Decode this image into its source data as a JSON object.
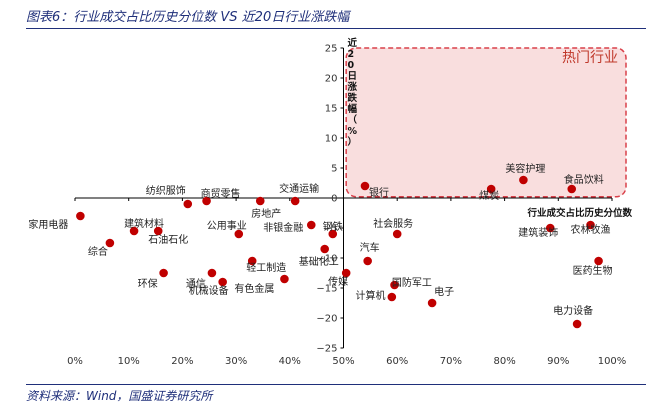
{
  "figure": {
    "title": "图表6：行业成交占比历史分位数 VS 近20日行业涨跌幅",
    "source": "资料来源：Wind，国盛证券研究所"
  },
  "chart_data": {
    "type": "scatter",
    "title": "图表6：行业成交占比历史分位数 VS 近20日行业涨跌幅",
    "xlabel": "行业成交占比历史分位数",
    "ylabel": "近20日涨跌幅（%）",
    "xlim": [
      0,
      1
    ],
    "ylim": [
      -25,
      25
    ],
    "xticks": [
      0,
      0.1,
      0.2,
      0.3,
      0.4,
      0.5,
      0.6,
      0.7,
      0.8,
      0.9,
      1.0
    ],
    "xtick_labels": [
      "0%",
      "10%",
      "20%",
      "30%",
      "40%",
      "50%",
      "60%",
      "70%",
      "80%",
      "90%",
      "100%"
    ],
    "yticks": [
      25,
      20,
      15,
      10,
      5,
      0,
      -5,
      -10,
      -15,
      -20,
      -25
    ],
    "ytick_labels": [
      "25",
      "20",
      "15",
      "10",
      "5",
      "0",
      "−5",
      "−10",
      "−15",
      "−20",
      "−25"
    ],
    "grid": false,
    "color": "#c00000",
    "highlight": {
      "label": "热门行业",
      "x_range": [
        0.505,
        1.0
      ],
      "y_range": [
        0.2,
        25
      ],
      "fill": "#f9dede",
      "stroke": "#d9404a"
    },
    "points": [
      {
        "name": "家用电器",
        "x": 0.01,
        "y": -3.0
      },
      {
        "name": "建筑材料",
        "x": 0.11,
        "y": -5.5
      },
      {
        "name": "综合",
        "x": 0.065,
        "y": -7.5
      },
      {
        "name": "石油石化",
        "x": 0.155,
        "y": -5.5
      },
      {
        "name": "环保",
        "x": 0.165,
        "y": -12.5
      },
      {
        "name": "纺织服饰",
        "x": 0.21,
        "y": -1.0
      },
      {
        "name": "商贸零售",
        "x": 0.245,
        "y": -0.5
      },
      {
        "name": "通信",
        "x": 0.255,
        "y": -12.5
      },
      {
        "name": "机械设备",
        "x": 0.275,
        "y": -14.0
      },
      {
        "name": "公用事业",
        "x": 0.305,
        "y": -6.0
      },
      {
        "name": "轻工制造",
        "x": 0.33,
        "y": -10.5
      },
      {
        "name": "房地产",
        "x": 0.345,
        "y": -0.5
      },
      {
        "name": "有色金属",
        "x": 0.39,
        "y": -13.5
      },
      {
        "name": "交通运输",
        "x": 0.41,
        "y": -0.5
      },
      {
        "name": "非银金融",
        "x": 0.44,
        "y": -4.5
      },
      {
        "name": "钢铁",
        "x": 0.48,
        "y": -6.0
      },
      {
        "name": "基础化工",
        "x": 0.465,
        "y": -8.5
      },
      {
        "name": "传媒",
        "x": 0.505,
        "y": -12.5
      },
      {
        "name": "银行",
        "x": 0.54,
        "y": 2.0
      },
      {
        "name": "社会服务",
        "x": 0.6,
        "y": -6.0
      },
      {
        "name": "汽车",
        "x": 0.545,
        "y": -10.5
      },
      {
        "name": "计算机",
        "x": 0.595,
        "y": -14.5
      },
      {
        "name": "国防军工",
        "x": 0.59,
        "y": -16.5
      },
      {
        "name": "电子",
        "x": 0.665,
        "y": -17.5
      },
      {
        "name": "煤炭",
        "x": 0.775,
        "y": 1.5
      },
      {
        "name": "美容护理",
        "x": 0.835,
        "y": 3.0
      },
      {
        "name": "建筑装饰",
        "x": 0.885,
        "y": -5.0
      },
      {
        "name": "食品饮料",
        "x": 0.925,
        "y": 1.5
      },
      {
        "name": "农林牧渔",
        "x": 0.96,
        "y": -4.5
      },
      {
        "name": "医药生物",
        "x": 0.975,
        "y": -10.5
      },
      {
        "name": "电力设备",
        "x": 0.935,
        "y": -21.0
      }
    ]
  }
}
